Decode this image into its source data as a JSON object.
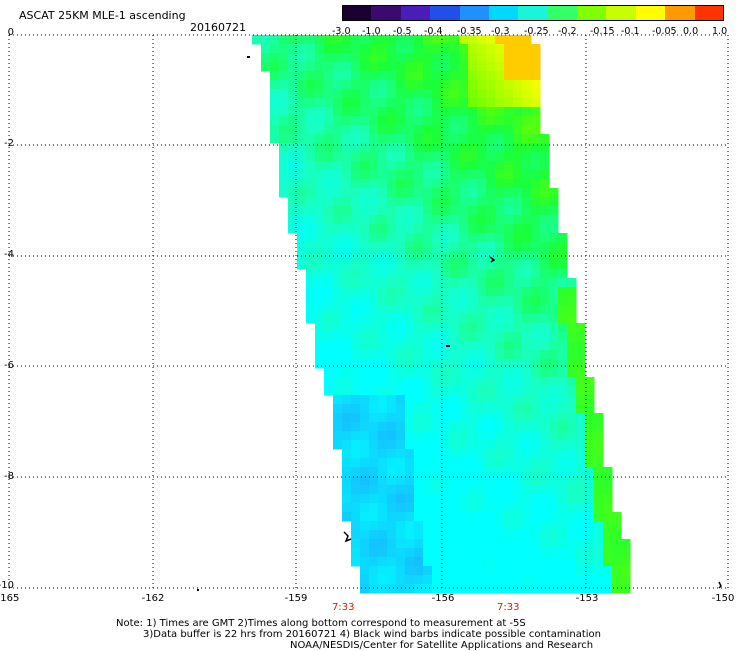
{
  "header": {
    "title": "ASCAT 25KM MLE-1 ascending",
    "date": "20160721"
  },
  "colorbar": {
    "colors": [
      "#1a0030",
      "#3a0a6e",
      "#4a1cb8",
      "#2050e8",
      "#1e90ff",
      "#00d8ff",
      "#19f5d9",
      "#33ff66",
      "#80ff00",
      "#c8ff00",
      "#ffff00",
      "#ff9900",
      "#ff3300"
    ],
    "labels": [
      "-3.0",
      "-1.0",
      "-0.5",
      "-0.4",
      "-0.35",
      "-0.3",
      "-0.25",
      "-0.2",
      "-0.15",
      "-0.1",
      "-0.05",
      "0.0",
      "1.0"
    ]
  },
  "map": {
    "y_ticks": [
      "0",
      "-2",
      "-4",
      "-6",
      "-8",
      "-10"
    ],
    "x_ticks": [
      "-165",
      "-162",
      "-159",
      "-156",
      "-153",
      "-150"
    ],
    "time_labels": [
      "7:33",
      "7:33"
    ],
    "swath_colors": {
      "cyan": "#00ffff",
      "aqua_green": "#19ffc0",
      "green": "#19ff3a",
      "lime": "#66ff00",
      "yellow": "#ffff00",
      "orange": "#ffcc00",
      "blue": "#19b3ff"
    }
  },
  "notes": {
    "line1": "Note: 1) Times are GMT 2)Times along bottom correspond to measurement at -5S",
    "line2": "3)Data buffer is 22 hrs from 20160721 4) Black wind barbs indicate possible contamination",
    "line3": "NOAA/NESDIS/Center for Satellite Applications and Research"
  }
}
